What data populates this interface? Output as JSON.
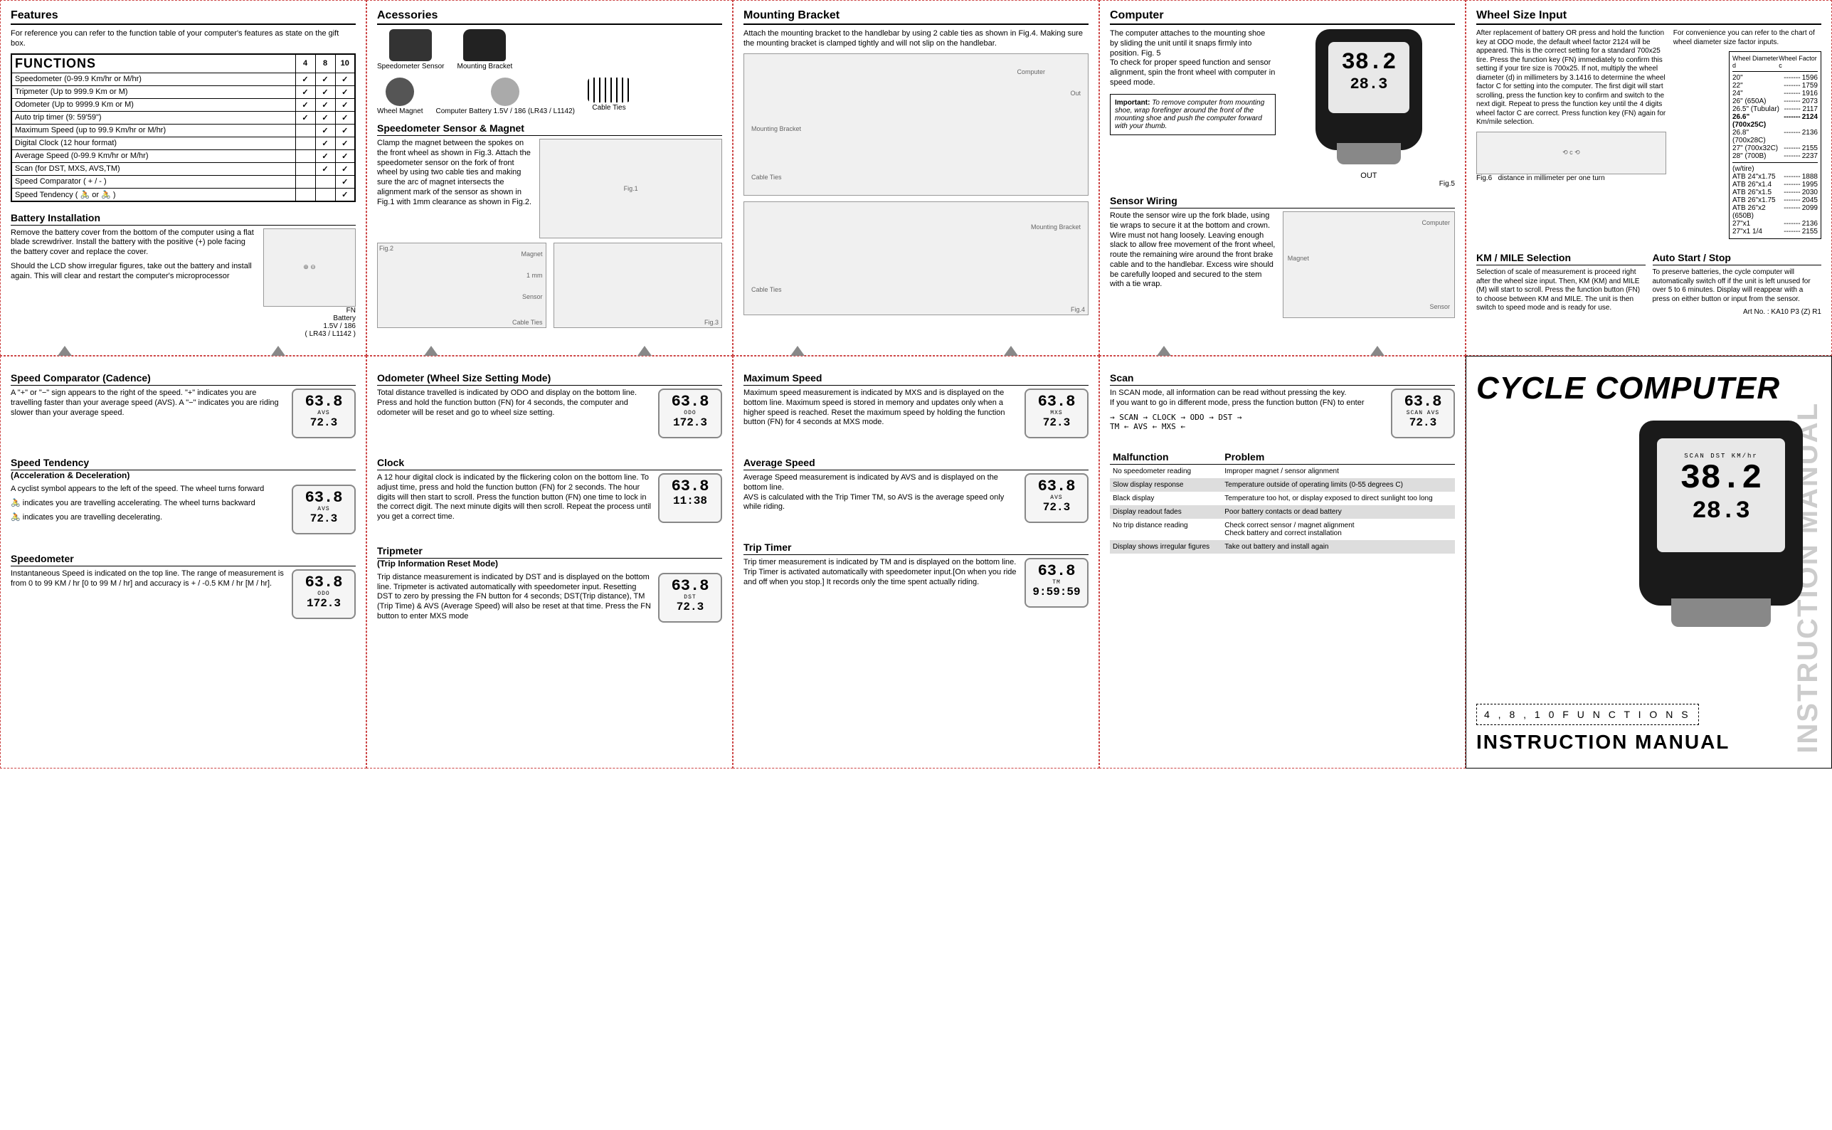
{
  "features": {
    "heading": "Features",
    "intro": "For reference you can refer to the function table of your computer's features as state on the gift box.",
    "table_title": "FUNCTIONS",
    "cols": [
      "4",
      "8",
      "10"
    ],
    "rows": [
      {
        "name": "Speedometer (0-99.9 Km/hr or M/hr)",
        "c": [
          true,
          true,
          true
        ]
      },
      {
        "name": "Tripmeter (Up to 999.9 Km or M)",
        "c": [
          true,
          true,
          true
        ]
      },
      {
        "name": "Odometer (Up to 9999.9 Km or M)",
        "c": [
          true,
          true,
          true
        ]
      },
      {
        "name": "Auto trip timer (9: 59'59\")",
        "c": [
          true,
          true,
          true
        ]
      },
      {
        "name": "Maximum Speed (up to 99.9 Km/hr or M/hr)",
        "c": [
          false,
          true,
          true
        ]
      },
      {
        "name": "Digital Clock (12 hour format)",
        "c": [
          false,
          true,
          true
        ]
      },
      {
        "name": "Average Speed (0-99.9 Km/hr or M/hr)",
        "c": [
          false,
          true,
          true
        ]
      },
      {
        "name": "Scan (for DST, MXS, AVS,TM)",
        "c": [
          false,
          true,
          true
        ]
      },
      {
        "name": "Speed Comparator ( + / - )",
        "c": [
          false,
          false,
          true
        ]
      },
      {
        "name": "Speed Tendency ( 🚴 or 🚴 )",
        "c": [
          false,
          false,
          true
        ]
      }
    ]
  },
  "battery": {
    "heading": "Battery Installation",
    "p1": "Remove the battery cover from the bottom of the computer using a flat blade screwdriver. Install the battery with the positive (+) pole facing the battery cover and replace the cover.",
    "p2": "Should the LCD show irregular figures, take out the battery and install again. This will clear and restart the computer's microprocessor",
    "label_fn": "FN",
    "label_batt": "Battery\n1.5V / 186\n( LR43 / L1142 )"
  },
  "accessories": {
    "heading": "Acessories",
    "items": [
      "Speedometer Sensor",
      "Mounting Bracket",
      "Wheel Magnet",
      "Computer Battery 1.5V / 186 (LR43 / L1142)",
      "Cable Ties"
    ]
  },
  "sensor_magnet": {
    "heading": "Speedometer Sensor & Magnet",
    "text": "Clamp the magnet between the spokes on the front wheel as shown in Fig.3. Attach the speedometer sensor on the fork of front wheel by using two cable ties and making sure the arc of magnet intersects the alignment mark of the sensor as shown in Fig.1 with 1mm clearance as shown in Fig.2.",
    "labels": [
      "Fig.2",
      "Magnet",
      "1 mm",
      "Sensor",
      "Cable Ties",
      "Fig.3"
    ]
  },
  "mounting": {
    "heading": "Mounting Bracket",
    "text": "Attach the mounting bracket to the handlebar by using 2 cable ties as shown in Fig.4. Making sure the mounting bracket is clamped tightly and will not slip on the handlebar.",
    "labels": [
      "Computer",
      "Out",
      "Mounting Bracket",
      "Cable Ties",
      "Mounting Bracket",
      "Cable Ties",
      "Fig.4"
    ]
  },
  "computer": {
    "heading": "Computer",
    "text": "The computer attaches to the mounting shoe by sliding the unit until it snaps firmly into position. Fig. 5\nTo check for proper speed function and sensor alignment, spin the front wheel with computer in speed mode.",
    "note_title": "Important:",
    "note": "To remove computer from mounting shoe, wrap forefinger around the front of the mounting shoe and push the computer forward with your thumb.",
    "out": "OUT",
    "fig": "Fig.5",
    "screen_l1": "38.2",
    "screen_l2": "28.3"
  },
  "sensor_wiring": {
    "heading": "Sensor Wiring",
    "text": "Route the sensor wire up the fork blade, using tie wraps to secure it at the bottom and crown. Wire must not hang loosely. Leaving enough slack to allow free movement of the front wheel, route the remaining wire around the front brake cable and to the handlebar. Excess wire should be carefully looped and secured to the stem with a tie wrap.",
    "labels": [
      "Computer",
      "Magnet",
      "Sensor"
    ]
  },
  "wheel_size": {
    "heading": "Wheel Size Input",
    "p1": "After replacement of battery OR press and hold the function key at ODO mode, the default wheel factor 2124 will be appeared. This is the correct setting for a standard 700x25 tire. Press the function key (FN) immediately to confirm this setting if your tire size is 700x25. If not, multiply the wheel diameter (d) in millimeters by 3.1416 to determine the wheel factor C for setting into the computer. The first digit will start scrolling, press the function key to confirm and switch to the next digit. Repeat to press the function key until the 4 digits wheel factor C are correct. Press function key (FN) again for Km/mile selection.",
    "p2": "For convenience you can refer to the chart of wheel diameter size factor inputs.",
    "tbl_hdr1": "Wheel Diameter d",
    "tbl_hdr2": "Wheel Factor c",
    "sizes1": [
      {
        "d": "20\"",
        "c": "1596"
      },
      {
        "d": "22\"",
        "c": "1759"
      },
      {
        "d": "24\"",
        "c": "1916"
      },
      {
        "d": "26\" (650A)",
        "c": "2073"
      },
      {
        "d": "26.5\" (Tubular)",
        "c": "2117"
      },
      {
        "d": "26.6\" (700x25C)",
        "c": "2124",
        "bold": true
      },
      {
        "d": "26.8\" (700x28C)",
        "c": "2136"
      },
      {
        "d": "27\" (700x32C)",
        "c": "2155"
      },
      {
        "d": "28\" (700B)",
        "c": "2237"
      }
    ],
    "sizes2_hdr": "(w/tire)",
    "sizes2": [
      {
        "d": "ATB 24\"x1.75",
        "c": "1888"
      },
      {
        "d": "ATB 26\"x1.4",
        "c": "1995"
      },
      {
        "d": "ATB 26\"x1.5",
        "c": "2030"
      },
      {
        "d": "ATB 26\"x1.75",
        "c": "2045"
      },
      {
        "d": "ATB 26\"x2 (650B)",
        "c": "2099"
      },
      {
        "d": "27\"x1",
        "c": "2136"
      },
      {
        "d": "27\"x1 1/4",
        "c": "2155"
      }
    ],
    "fig": "Fig.6",
    "dist_label": "distance in millimeter per one turn"
  },
  "km_mile": {
    "heading": "KM / MILE Selection",
    "text": "Selection of scale of measurement is proceed right after the wheel size input. Then, KM (KM) and MILE (M) will start to scroll. Press the function button (FN) to choose between KM and MILE. The unit is then switch to speed mode and is ready for use."
  },
  "auto_start": {
    "heading": "Auto Start / Stop",
    "text": "To preserve batteries, the cycle computer will automatically switch off if the unit is left unused for over 5 to 6 minutes. Display will reappear with a press on either button or input from the sensor.",
    "art": "Art No. : KA10 P3 (Z) R1"
  },
  "speed_comp": {
    "heading": "Speed Comparator (Cadence)",
    "text": "A \"+\" or \"−\" sign appears to the right of the speed. \"+\" indicates you are travelling faster than your average speed (AVS). A \"−\" indicates you are riding slower than your average speed.",
    "lcd": {
      "big": "63.8",
      "mode": "AVS",
      "bot": "72.3"
    }
  },
  "speed_tend": {
    "heading": "Speed Tendency",
    "sub": "(Acceleration & Deceleration)",
    "p1": "A cyclist symbol appears to the left of the speed. The wheel turns forward",
    "p2": "indicates you are travelling accelerating. The wheel turns backward",
    "p3": "indicates you are travelling decelerating.",
    "lcd": {
      "big": "63.8",
      "mode": "AVS",
      "bot": "72.3"
    }
  },
  "speedometer": {
    "heading": "Speedometer",
    "text": "Instantaneous Speed is indicated on the top line. The range of measurement is from 0 to 99 KM / hr [0 to 99 M / hr] and accuracy is + / -0.5 KM / hr [M / hr].",
    "lcd": {
      "big": "63.8",
      "mode": "ODO",
      "bot": "172.3"
    }
  },
  "odometer": {
    "heading": "Odometer (Wheel Size Setting Mode)",
    "text": "Total distance travelled is indicated by ODO and display on the bottom line. Press and hold the function button (FN) for 4 seconds, the computer and odometer will be reset and go to wheel size setting.",
    "lcd": {
      "big": "63.8",
      "mode": "ODO",
      "bot": "172.3"
    }
  },
  "clock": {
    "heading": "Clock",
    "text": "A 12 hour digital clock is indicated by the flickering colon on the bottom line. To adjust time, press and hold the function button (FN) for 2 seconds. The hour digits will then start to scroll. Press the function button (FN) one time to lock in the correct digit. The next minute digits will then scroll. Repeat the process until you get a correct time.",
    "lcd": {
      "big": "63.8",
      "mode": "",
      "bot": "11:38"
    }
  },
  "tripmeter": {
    "heading": "Tripmeter",
    "sub": "(Trip Information Reset Mode)",
    "text": "Trip distance measurement is indicated by DST and is displayed on the bottom line. Tripmeter is activated automatically with speedometer input. Resetting DST to zero by pressing the FN button for 4 seconds; DST(Trip distance), TM (Trip Time) & AVS (Average Speed) will also be reset at that time. Press the FN button to enter MXS mode",
    "lcd": {
      "big": "63.8",
      "mode": "DST",
      "bot": "72.3"
    }
  },
  "max_speed": {
    "heading": "Maximum Speed",
    "text": "Maximum speed measurement is indicated by MXS and is displayed on the bottom line. Maximum speed is stored in memory and updates only when a higher speed is reached. Reset the maximum speed by holding the function button (FN) for 4 seconds at MXS mode.",
    "lcd": {
      "big": "63.8",
      "mode": "MXS",
      "bot": "72.3"
    }
  },
  "avg_speed": {
    "heading": "Average Speed",
    "text": "Average Speed measurement is indicated by AVS and is displayed on the bottom line.\nAVS is calculated with the Trip Timer TM, so AVS is the average speed only while riding.",
    "lcd": {
      "big": "63.8",
      "mode": "AVS",
      "bot": "72.3"
    }
  },
  "trip_timer": {
    "heading": "Trip Timer",
    "text": "Trip timer measurement is indicated by TM and is displayed on the bottom line. Trip Timer is activated automatically with speedometer input.[On when you ride and off when you stop.] It records only the time spent actually riding.",
    "lcd": {
      "big": "63.8",
      "mode": "TM",
      "bot": "9:59:59"
    }
  },
  "scan": {
    "heading": "Scan",
    "text": "In SCAN mode, all information can be read without pressing the key.\nIf you want to go in different mode, press the function button (FN) to enter",
    "flow": "→ SCAN → CLOCK → ODO → DST →\nTM ← AVS ← MXS ←",
    "lcd": {
      "big": "63.8",
      "mode": "SCAN AVS",
      "bot": "72.3"
    }
  },
  "malfunction": {
    "h1": "Malfunction",
    "h2": "Problem",
    "rows": [
      {
        "m": "No speedometer reading",
        "p": "Improper magnet / sensor alignment"
      },
      {
        "m": "Slow display response",
        "p": "Temperature outside of operating limits (0-55 degrees C)"
      },
      {
        "m": "Black display",
        "p": "Temperature too hot, or display exposed to direct sunlight too long"
      },
      {
        "m": "Display readout fades",
        "p": "Poor battery contacts or dead battery"
      },
      {
        "m": "No trip distance reading",
        "p": "Check correct sensor / magnet alignment\nCheck battery and correct installation"
      },
      {
        "m": "Display shows irregular figures",
        "p": "Take out battery and install again"
      }
    ]
  },
  "cover": {
    "title": "CYCLE COMPUTER",
    "sub": "4 , 8 , 1 0   F U N C T I O N S",
    "manual": "INSTRUCTION MANUAL",
    "side": "INSTRUCTION MANUAL",
    "screen_l1": "38.2",
    "screen_l2": "28.3",
    "screen_tags": "SCAN   DST   KM/hr"
  }
}
